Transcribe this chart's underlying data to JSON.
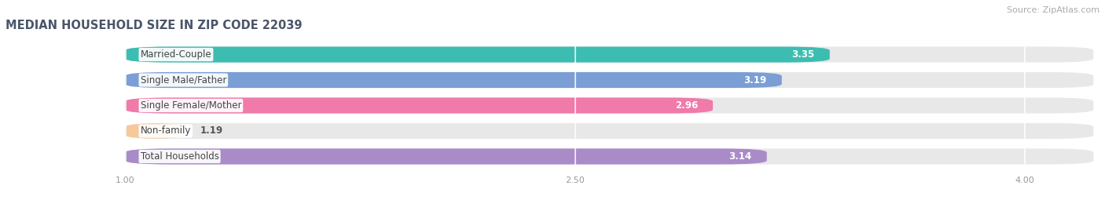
{
  "title": "MEDIAN HOUSEHOLD SIZE IN ZIP CODE 22039",
  "source": "Source: ZipAtlas.com",
  "categories": [
    "Married-Couple",
    "Single Male/Father",
    "Single Female/Mother",
    "Non-family",
    "Total Households"
  ],
  "values": [
    3.35,
    3.19,
    2.96,
    1.19,
    3.14
  ],
  "bar_colors": [
    "#3dbdb1",
    "#7b9fd4",
    "#f07aaa",
    "#f5c99a",
    "#a98bc8"
  ],
  "background_color": "#ffffff",
  "bar_bg_color": "#e8e8e8",
  "xlim_left": 0.6,
  "xlim_right": 4.25,
  "xticks": [
    1.0,
    2.5,
    4.0
  ],
  "xmin": 1.0,
  "bar_height": 0.62,
  "label_fontsize": 8.5,
  "value_fontsize": 8.5,
  "title_fontsize": 10.5,
  "source_fontsize": 8,
  "title_color": "#4a5568",
  "source_color": "#aaaaaa",
  "tick_color": "#999999",
  "value_label_color": "#555555"
}
